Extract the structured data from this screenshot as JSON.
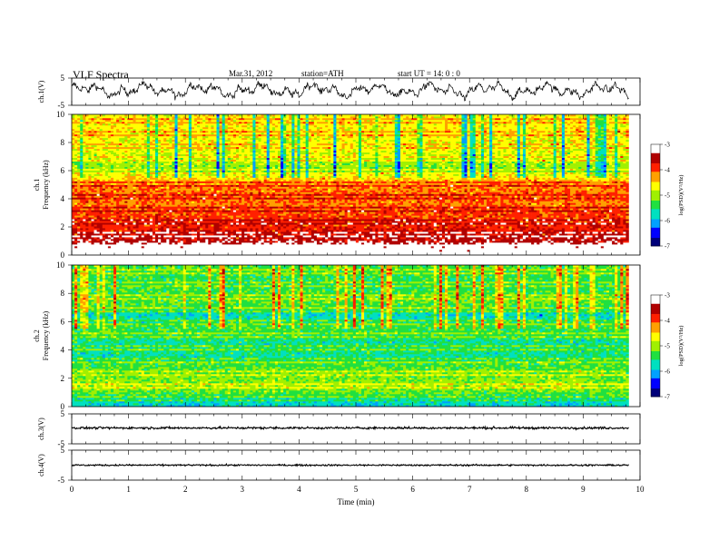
{
  "header": {
    "title": "VLF  Spectra",
    "date": "Mar.31, 2012",
    "station": "station=ATH",
    "start": "start  UT =   14: 0  : 0"
  },
  "chart_data": [
    {
      "type": "line",
      "panel": "ch1-waveform",
      "ylabel": "ch.1(V)",
      "ylim": [
        -5,
        5
      ],
      "yticks": [
        5,
        -5
      ],
      "xlim": [
        0,
        10
      ],
      "data_extent": [
        0,
        9.8
      ],
      "line_color": "#000000"
    },
    {
      "type": "heatmap",
      "panel": "ch1-spectrogram",
      "ylabel": "ch.1\nFrequency  (kHz)",
      "ylim": [
        0,
        10
      ],
      "yticks": [
        0,
        2,
        4,
        6,
        8,
        10
      ],
      "xlim": [
        0,
        10
      ],
      "data_extent": [
        0,
        9.8
      ],
      "colorbar": {
        "label": "log(PSD)(V²/Hz)",
        "range": [
          -7,
          -3
        ],
        "ticks": [
          -7,
          -6,
          -5,
          -4,
          -3
        ],
        "colormap": [
          "#00007a",
          "#0000ff",
          "#00a0ff",
          "#00e0c0",
          "#20e040",
          "#a0f000",
          "#ffff00",
          "#ffa000",
          "#ff2000",
          "#b00000",
          "#ffffff"
        ]
      },
      "mean_log_psd_by_freq_khz": [
        {
          "f": 0.0,
          "v": -2.8
        },
        {
          "f": 0.5,
          "v": -3.0
        },
        {
          "f": 1.0,
          "v": -3.5
        },
        {
          "f": 1.5,
          "v": -3.7
        },
        {
          "f": 2.0,
          "v": -3.8
        },
        {
          "f": 2.5,
          "v": -3.9
        },
        {
          "f": 3.0,
          "v": -4.0
        },
        {
          "f": 3.5,
          "v": -4.1
        },
        {
          "f": 4.0,
          "v": -4.1
        },
        {
          "f": 4.5,
          "v": -4.1
        },
        {
          "f": 5.0,
          "v": -4.2
        },
        {
          "f": 5.5,
          "v": -4.5
        },
        {
          "f": 6.0,
          "v": -5.1
        },
        {
          "f": 6.5,
          "v": -5.0
        },
        {
          "f": 7.0,
          "v": -4.8
        },
        {
          "f": 7.5,
          "v": -4.7
        },
        {
          "f": 8.0,
          "v": -4.7
        },
        {
          "f": 8.5,
          "v": -4.6
        },
        {
          "f": 9.0,
          "v": -4.6
        },
        {
          "f": 9.5,
          "v": -4.6
        },
        {
          "f": 10.0,
          "v": -4.6
        }
      ]
    },
    {
      "type": "heatmap",
      "panel": "ch2-spectrogram",
      "ylabel": "ch.2\nFrequency  (kHz)",
      "ylim": [
        0,
        10
      ],
      "yticks": [
        0,
        2,
        4,
        6,
        8,
        10
      ],
      "xlim": [
        0,
        10
      ],
      "data_extent": [
        0,
        9.8
      ],
      "colorbar": {
        "label": "log(PSD)(V²/Hz)",
        "range": [
          -7,
          -3
        ],
        "ticks": [
          -7,
          -6,
          -5,
          -4,
          -3
        ],
        "colormap": [
          "#00007a",
          "#0000ff",
          "#00a0ff",
          "#00e0c0",
          "#20e040",
          "#a0f000",
          "#ffff00",
          "#ffa000",
          "#ff2000",
          "#b00000",
          "#ffffff"
        ]
      },
      "mean_log_psd_by_freq_khz": [
        {
          "f": 0.0,
          "v": -5.8
        },
        {
          "f": 0.5,
          "v": -5.7
        },
        {
          "f": 1.0,
          "v": -5.2
        },
        {
          "f": 1.5,
          "v": -5.0
        },
        {
          "f": 2.0,
          "v": -5.1
        },
        {
          "f": 2.5,
          "v": -5.2
        },
        {
          "f": 3.0,
          "v": -5.3
        },
        {
          "f": 3.5,
          "v": -5.6
        },
        {
          "f": 4.0,
          "v": -5.5
        },
        {
          "f": 4.5,
          "v": -5.6
        },
        {
          "f": 5.0,
          "v": -5.4
        },
        {
          "f": 5.5,
          "v": -5.3
        },
        {
          "f": 6.0,
          "v": -5.5
        },
        {
          "f": 6.5,
          "v": -5.8
        },
        {
          "f": 7.0,
          "v": -5.3
        },
        {
          "f": 7.5,
          "v": -5.2
        },
        {
          "f": 8.0,
          "v": -5.3
        },
        {
          "f": 8.5,
          "v": -5.4
        },
        {
          "f": 9.0,
          "v": -5.4
        },
        {
          "f": 9.5,
          "v": -5.3
        },
        {
          "f": 10.0,
          "v": -5.3
        }
      ]
    },
    {
      "type": "line",
      "panel": "ch3-waveform",
      "ylabel": "ch.3(V)",
      "ylim": [
        -5,
        5
      ],
      "yticks": [
        5,
        -5
      ],
      "xlim": [
        0,
        10
      ],
      "data_extent": [
        0,
        9.8
      ],
      "line_color": "#000000"
    },
    {
      "type": "line",
      "panel": "ch4-waveform",
      "ylabel": "ch.4(V)",
      "ylim": [
        -5,
        5
      ],
      "yticks": [
        5,
        -5
      ],
      "xlim": [
        0,
        10
      ],
      "xticks": [
        0,
        1,
        2,
        3,
        4,
        5,
        6,
        7,
        8,
        9,
        10
      ],
      "xlabel": "Time  (min)",
      "data_extent": [
        0,
        9.8
      ],
      "line_color": "#000000"
    }
  ]
}
